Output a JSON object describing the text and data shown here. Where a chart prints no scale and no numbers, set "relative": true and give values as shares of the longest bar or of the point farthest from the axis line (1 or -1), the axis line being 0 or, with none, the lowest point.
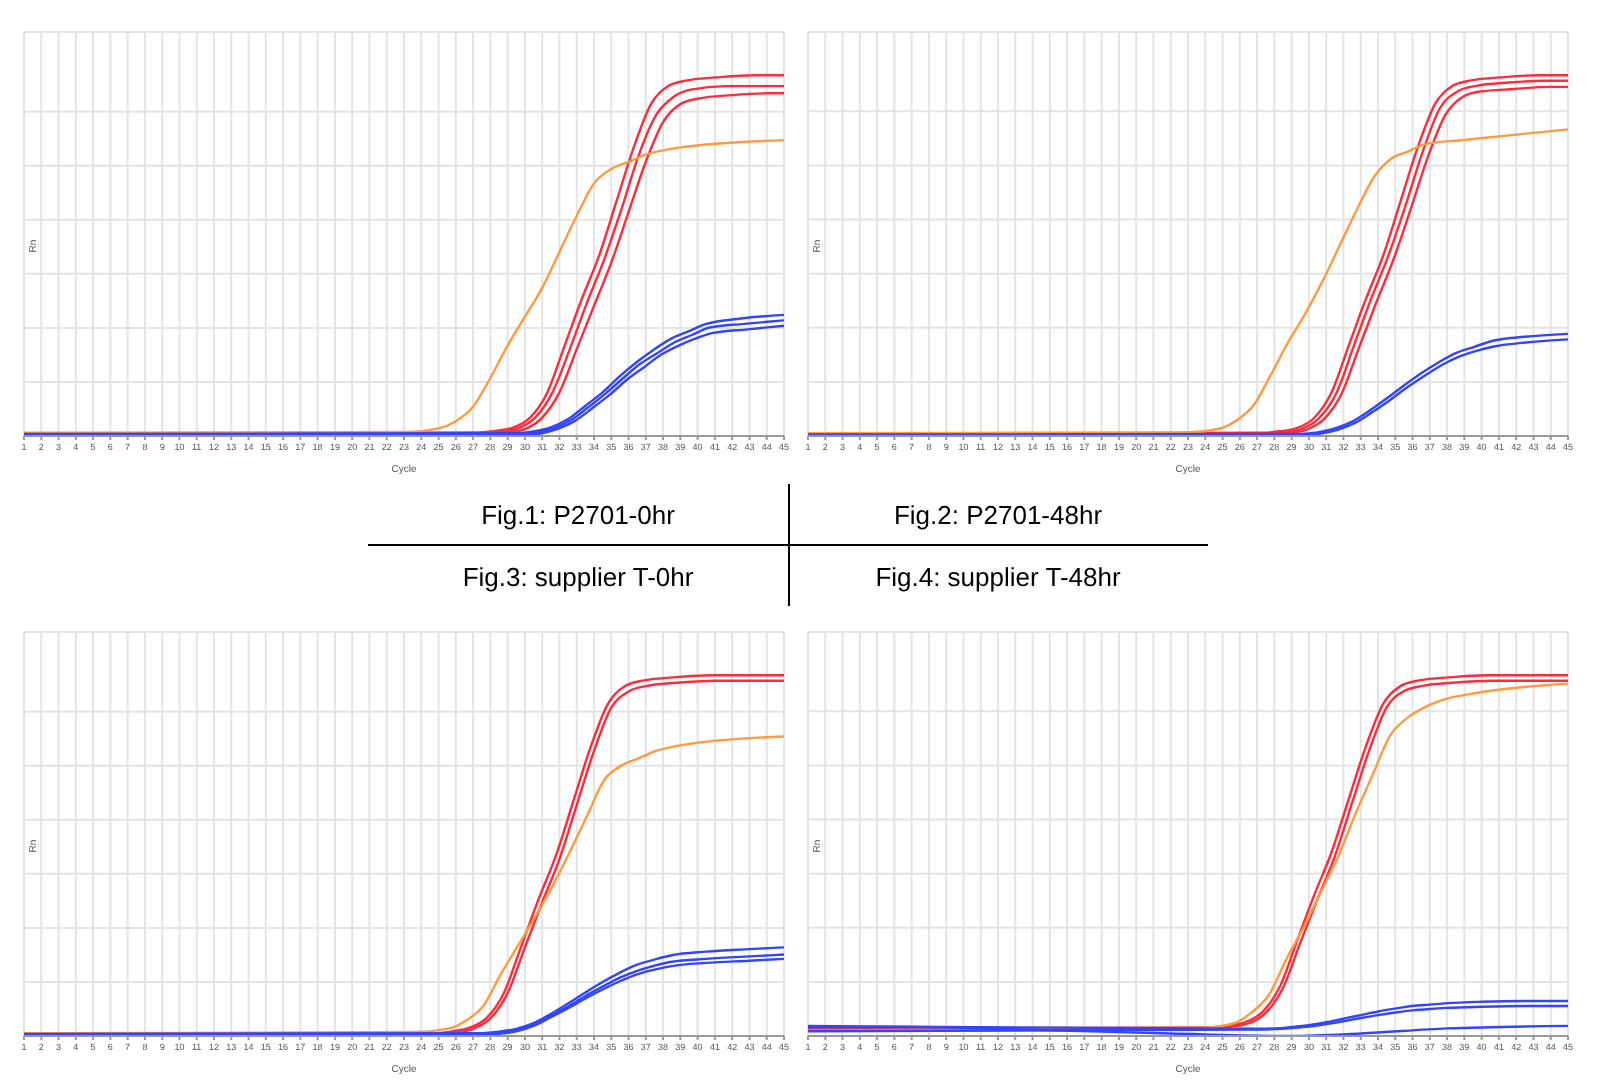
{
  "chart_data": [
    {
      "type": "line",
      "title": "Fig.1: P2701-0hr",
      "xlabel": "Cycle",
      "ylabel": "Rn",
      "relative": true,
      "grid": true,
      "marker": "none",
      "xlim": [
        1,
        45
      ],
      "xticks": [
        1,
        2,
        3,
        4,
        5,
        6,
        7,
        8,
        9,
        10,
        11,
        12,
        13,
        14,
        15,
        16,
        17,
        18,
        19,
        20,
        21,
        22,
        23,
        24,
        25,
        26,
        27,
        28,
        29,
        30,
        31,
        32,
        33,
        34,
        35,
        36,
        37,
        38,
        39,
        40,
        41,
        42,
        43,
        44,
        45
      ],
      "series": [
        {
          "color": "#ff2a3a",
          "x": [
            1,
            27.3,
            28.3,
            29.3,
            30.3,
            31.3,
            32.3,
            33.3,
            34.3,
            35.3,
            36.3,
            37.3,
            38.3,
            39.3,
            41.3,
            43.3,
            45
          ],
          "values": [
            0.006,
            0.009,
            0.013,
            0.022,
            0.05,
            0.12,
            0.25,
            0.38,
            0.5,
            0.65,
            0.8,
            0.92,
            0.97,
            0.985,
            0.995,
            1,
            1
          ]
        },
        {
          "color": "#ff2a3a",
          "x": [
            1,
            27.6,
            28.6,
            29.6,
            30.6,
            31.6,
            32.6,
            33.6,
            34.6,
            35.6,
            36.6,
            37.6,
            38.6,
            39.6,
            41.6,
            43.6,
            45
          ],
          "values": [
            0.003,
            0.006,
            0.01,
            0.02,
            0.05,
            0.12,
            0.24,
            0.37,
            0.49,
            0.63,
            0.78,
            0.89,
            0.94,
            0.96,
            0.97,
            0.97,
            0.97
          ]
        },
        {
          "color": "#ff2a3a",
          "x": [
            1,
            28,
            29,
            30,
            31,
            32,
            33,
            34,
            35,
            36,
            37,
            38,
            39,
            40,
            42,
            44,
            45
          ],
          "values": [
            0,
            0.003,
            0.008,
            0.018,
            0.05,
            0.12,
            0.24,
            0.36,
            0.48,
            0.62,
            0.76,
            0.87,
            0.92,
            0.935,
            0.945,
            0.95,
            0.95
          ]
        },
        {
          "color": "#ff9a40",
          "x": [
            1,
            23,
            25,
            26,
            27,
            28,
            29,
            30,
            31,
            32,
            33,
            34,
            35,
            36,
            37,
            39,
            45
          ],
          "values": [
            0.008,
            0.01,
            0.02,
            0.04,
            0.08,
            0.16,
            0.25,
            0.33,
            0.41,
            0.51,
            0.61,
            0.7,
            0.74,
            0.76,
            0.78,
            0.8,
            0.82
          ]
        },
        {
          "color": "#3344ff",
          "x": [
            1,
            29.5,
            30.5,
            31.5,
            32.5,
            33.5,
            34.5,
            35.5,
            36.5,
            37.5,
            38.5,
            39.5,
            40.5,
            42.5,
            45
          ],
          "values": [
            0.005,
            0.007,
            0.012,
            0.023,
            0.046,
            0.083,
            0.12,
            0.165,
            0.205,
            0.24,
            0.27,
            0.29,
            0.31,
            0.325,
            0.335
          ]
        },
        {
          "color": "#3344ff",
          "x": [
            1,
            29.7,
            30.7,
            31.7,
            32.7,
            33.7,
            34.7,
            35.7,
            36.7,
            37.7,
            38.7,
            39.7,
            40.7,
            42.7,
            45
          ],
          "values": [
            0.002,
            0.004,
            0.009,
            0.021,
            0.044,
            0.08,
            0.118,
            0.16,
            0.2,
            0.23,
            0.26,
            0.28,
            0.3,
            0.31,
            0.32
          ]
        },
        {
          "color": "#3344ff",
          "x": [
            1,
            29.9,
            30.9,
            31.9,
            32.9,
            33.9,
            34.9,
            35.9,
            36.9,
            37.9,
            38.9,
            39.9,
            40.9,
            42.9,
            45
          ],
          "values": [
            -0.001,
            0.001,
            0.006,
            0.019,
            0.041,
            0.076,
            0.113,
            0.155,
            0.19,
            0.225,
            0.25,
            0.27,
            0.285,
            0.295,
            0.305
          ]
        }
      ]
    },
    {
      "type": "line",
      "title": "Fig.2: P2701-48hr",
      "xlabel": "Cycle",
      "ylabel": "Rn",
      "relative": true,
      "grid": true,
      "marker": "none",
      "xlim": [
        1,
        45
      ],
      "xticks": [
        1,
        2,
        3,
        4,
        5,
        6,
        7,
        8,
        9,
        10,
        11,
        12,
        13,
        14,
        15,
        16,
        17,
        18,
        19,
        20,
        21,
        22,
        23,
        24,
        25,
        26,
        27,
        28,
        29,
        30,
        31,
        32,
        33,
        34,
        35,
        36,
        37,
        38,
        39,
        40,
        41,
        42,
        43,
        44,
        45
      ],
      "series": [
        {
          "color": "#ff2a3a",
          "x": [
            1,
            27.3,
            28.3,
            29.3,
            30.3,
            31.3,
            32.3,
            33.3,
            34.3,
            35.3,
            36.3,
            37.3,
            38.3,
            39.3,
            41.3,
            43.3,
            45
          ],
          "values": [
            0.006,
            0.009,
            0.013,
            0.022,
            0.05,
            0.12,
            0.25,
            0.38,
            0.5,
            0.65,
            0.8,
            0.92,
            0.97,
            0.985,
            0.995,
            1,
            1
          ]
        },
        {
          "color": "#ff2a3a",
          "x": [
            1,
            27.6,
            28.6,
            29.6,
            30.6,
            31.6,
            32.6,
            33.6,
            34.6,
            35.6,
            36.6,
            37.6,
            38.6,
            39.6,
            41.6,
            43.6,
            45
          ],
          "values": [
            0.003,
            0.006,
            0.01,
            0.02,
            0.05,
            0.12,
            0.25,
            0.38,
            0.5,
            0.64,
            0.79,
            0.91,
            0.955,
            0.97,
            0.98,
            0.985,
            0.985
          ]
        },
        {
          "color": "#ff2a3a",
          "x": [
            1,
            27.9,
            28.9,
            29.9,
            30.9,
            31.9,
            32.9,
            33.9,
            34.9,
            35.9,
            36.9,
            37.9,
            38.9,
            39.9,
            41.9,
            43.9,
            45
          ],
          "values": [
            0,
            0.003,
            0.008,
            0.018,
            0.048,
            0.118,
            0.245,
            0.37,
            0.49,
            0.63,
            0.775,
            0.89,
            0.94,
            0.955,
            0.962,
            0.968,
            0.968
          ]
        },
        {
          "color": "#ff9a40",
          "x": [
            1,
            22.8,
            24.8,
            25.8,
            26.8,
            27.8,
            28.8,
            29.8,
            30.8,
            31.8,
            32.8,
            33.8,
            34.8,
            35.8,
            36.8,
            38.8,
            45
          ],
          "values": [
            0.008,
            0.01,
            0.02,
            0.043,
            0.085,
            0.17,
            0.26,
            0.34,
            0.43,
            0.53,
            0.63,
            0.72,
            0.77,
            0.79,
            0.81,
            0.82,
            0.85
          ]
        },
        {
          "color": "#3344ff",
          "x": [
            1,
            29.5,
            30.5,
            31.5,
            32.5,
            33.5,
            34.5,
            35.5,
            36.5,
            37.5,
            38.5,
            39.5,
            40.5,
            42.5,
            45
          ],
          "values": [
            0.004,
            0.006,
            0.01,
            0.021,
            0.04,
            0.07,
            0.104,
            0.14,
            0.174,
            0.204,
            0.23,
            0.246,
            0.262,
            0.275,
            0.283
          ]
        },
        {
          "color": "#3344ff",
          "x": [
            1,
            29.7,
            30.7,
            31.7,
            32.7,
            33.7,
            34.7,
            35.7,
            36.7,
            37.7,
            38.7,
            39.7,
            40.7,
            42.7,
            45
          ],
          "values": [
            0.001,
            0.003,
            0.007,
            0.018,
            0.037,
            0.067,
            0.1,
            0.135,
            0.167,
            0.197,
            0.22,
            0.236,
            0.248,
            0.26,
            0.268
          ]
        }
      ]
    },
    {
      "type": "line",
      "title": "Fig.3: supplier T-0hr",
      "xlabel": "Cycle",
      "ylabel": "Rn",
      "relative": true,
      "grid": true,
      "marker": "none",
      "xlim": [
        1,
        45
      ],
      "xticks": [
        1,
        2,
        3,
        4,
        5,
        6,
        7,
        8,
        9,
        10,
        11,
        12,
        13,
        14,
        15,
        16,
        17,
        18,
        19,
        20,
        21,
        22,
        23,
        24,
        25,
        26,
        27,
        28,
        29,
        30,
        31,
        32,
        33,
        34,
        35,
        36,
        37,
        38,
        39,
        40,
        41,
        42,
        43,
        44,
        45
      ],
      "series": [
        {
          "color": "#ff2a3a",
          "x": [
            1,
            24.8,
            25.8,
            26.8,
            27.8,
            28.8,
            29.8,
            30.8,
            31.8,
            32.8,
            33.8,
            34.8,
            35.8,
            36.8,
            38.8,
            40.8,
            45
          ],
          "values": [
            0.004,
            0.007,
            0.012,
            0.022,
            0.05,
            0.12,
            0.25,
            0.38,
            0.5,
            0.65,
            0.8,
            0.92,
            0.97,
            0.985,
            0.995,
            1,
            1
          ]
        },
        {
          "color": "#ff2a3a",
          "x": [
            1,
            25,
            26,
            27,
            28,
            29,
            30,
            31,
            32,
            33,
            34,
            35,
            36,
            37,
            39,
            41,
            45
          ],
          "values": [
            0.001,
            0.004,
            0.009,
            0.019,
            0.048,
            0.118,
            0.245,
            0.37,
            0.49,
            0.64,
            0.79,
            0.91,
            0.955,
            0.97,
            0.98,
            0.985,
            0.985
          ]
        },
        {
          "color": "#ff9a40",
          "x": [
            1,
            23.6,
            25.6,
            26.6,
            27.6,
            28.6,
            29.6,
            30.6,
            31.6,
            32.6,
            33.6,
            34.6,
            35.6,
            36.6,
            37.6,
            39.6,
            45
          ],
          "values": [
            0.007,
            0.01,
            0.02,
            0.042,
            0.083,
            0.17,
            0.25,
            0.33,
            0.415,
            0.51,
            0.61,
            0.71,
            0.75,
            0.77,
            0.79,
            0.81,
            0.83
          ]
        },
        {
          "color": "#3344ff",
          "x": [
            1,
            27.5,
            28.5,
            29.5,
            30.5,
            31.5,
            32.5,
            33.5,
            34.5,
            35.5,
            36.5,
            37.5,
            38.5,
            40.5,
            43,
            45
          ],
          "values": [
            0.005,
            0.007,
            0.011,
            0.019,
            0.035,
            0.06,
            0.089,
            0.12,
            0.149,
            0.175,
            0.197,
            0.211,
            0.223,
            0.233,
            0.24,
            0.245
          ]
        },
        {
          "color": "#3344ff",
          "x": [
            1,
            27.5,
            28.5,
            29.5,
            30.5,
            31.5,
            32.5,
            33.5,
            34.5,
            35.5,
            36.5,
            37.5,
            38.5,
            40.5,
            43,
            45
          ],
          "values": [
            0.002,
            0.004,
            0.008,
            0.015,
            0.031,
            0.055,
            0.081,
            0.11,
            0.136,
            0.161,
            0.18,
            0.194,
            0.205,
            0.213,
            0.22,
            0.225
          ]
        },
        {
          "color": "#3344ff",
          "x": [
            1,
            27.5,
            28.5,
            29.5,
            30.5,
            31.5,
            32.5,
            33.5,
            34.5,
            35.5,
            36.5,
            37.5,
            38.5,
            40.5,
            43,
            45
          ],
          "values": [
            -0.001,
            0.001,
            0.005,
            0.012,
            0.027,
            0.051,
            0.076,
            0.103,
            0.128,
            0.151,
            0.17,
            0.183,
            0.193,
            0.202,
            0.208,
            0.213
          ]
        }
      ]
    },
    {
      "type": "line",
      "title": "Fig.4: supplier T-48hr",
      "xlabel": "Cycle",
      "ylabel": "Rn",
      "relative": true,
      "grid": true,
      "marker": "none",
      "xlim": [
        1,
        45
      ],
      "xticks": [
        1,
        2,
        3,
        4,
        5,
        6,
        7,
        8,
        9,
        10,
        11,
        12,
        13,
        14,
        15,
        16,
        17,
        18,
        19,
        20,
        21,
        22,
        23,
        24,
        25,
        26,
        27,
        28,
        29,
        30,
        31,
        32,
        33,
        34,
        35,
        36,
        37,
        38,
        39,
        40,
        41,
        42,
        43,
        44,
        45
      ],
      "series": [
        {
          "color": "#ff2a3a",
          "x": [
            1,
            24.3,
            25.3,
            26.3,
            27.3,
            28.3,
            29.3,
            30.3,
            31.3,
            32.3,
            33.3,
            34.3,
            35.3,
            36.3,
            38.3,
            40.3,
            45
          ],
          "values": [
            0.02,
            0.024,
            0.029,
            0.038,
            0.066,
            0.135,
            0.262,
            0.39,
            0.508,
            0.656,
            0.803,
            0.921,
            0.97,
            0.985,
            0.995,
            1,
            1
          ]
        },
        {
          "color": "#ff2a3a",
          "x": [
            1,
            24.5,
            25.5,
            26.5,
            27.5,
            28.5,
            29.5,
            30.5,
            31.5,
            32.5,
            33.5,
            34.5,
            35.5,
            36.5,
            38.5,
            40.5,
            45
          ],
          "values": [
            0.018,
            0.021,
            0.026,
            0.035,
            0.064,
            0.133,
            0.258,
            0.38,
            0.498,
            0.646,
            0.793,
            0.911,
            0.956,
            0.97,
            0.98,
            0.985,
            0.985
          ]
        },
        {
          "color": "#ff9a40",
          "x": [
            1,
            23.7,
            25.7,
            26.7,
            27.7,
            28.7,
            29.7,
            30.7,
            31.7,
            32.7,
            33.7,
            34.7,
            35.7,
            36.7,
            37.7,
            39.7,
            45
          ],
          "values": [
            0.015,
            0.022,
            0.036,
            0.066,
            0.115,
            0.213,
            0.302,
            0.4,
            0.498,
            0.616,
            0.725,
            0.833,
            0.882,
            0.911,
            0.931,
            0.951,
            0.977
          ]
        },
        {
          "color": "#3344ff",
          "x": [
            1,
            27,
            28,
            29,
            30,
            31,
            32,
            33,
            34,
            35,
            36,
            37,
            38,
            40,
            42.5,
            45
          ],
          "values": [
            0.028,
            0.02,
            0.021,
            0.025,
            0.03,
            0.038,
            0.048,
            0.058,
            0.068,
            0.076,
            0.083,
            0.087,
            0.091,
            0.095,
            0.097,
            0.097
          ]
        },
        {
          "color": "#3344ff",
          "x": [
            1,
            27,
            28,
            29,
            30,
            31,
            32,
            33,
            34,
            35,
            36,
            37,
            38,
            40,
            42.5,
            45
          ],
          "values": [
            0.013,
            0.018,
            0.019,
            0.022,
            0.026,
            0.033,
            0.041,
            0.05,
            0.058,
            0.065,
            0.071,
            0.075,
            0.078,
            0.081,
            0.083,
            0.083
          ]
        },
        {
          "color": "#3344ff",
          "x": [
            1,
            7,
            15,
            22,
            29,
            33,
            38,
            45
          ],
          "values": [
            0.025,
            0.025,
            0.016,
            0.007,
            0,
            0.007,
            0.021,
            0.028
          ]
        }
      ]
    }
  ]
}
